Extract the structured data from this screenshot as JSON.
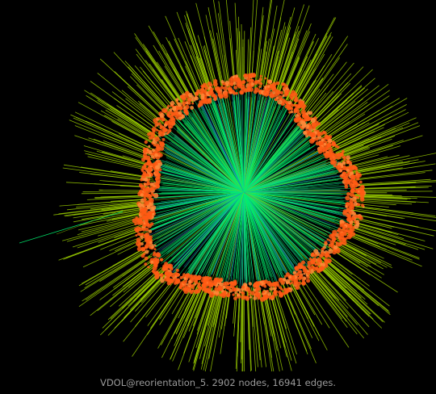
{
  "caption": "VDOL@reorientation_5. 2902 nodes, 16941 edges.",
  "colors": {
    "background": "#000000",
    "caption_text": "#9a9a9a",
    "outer_spokes": "#9acd00",
    "inner_spokes": "#00f070",
    "inner_spokes_alt": "#1fb6a0",
    "inner_spokes_blue": "#1f6fd0",
    "node_ring": "#ff5a14",
    "node_ring_light": "#ff8a3a"
  },
  "graph": {
    "nodes": 2902,
    "edges": 16941
  }
}
